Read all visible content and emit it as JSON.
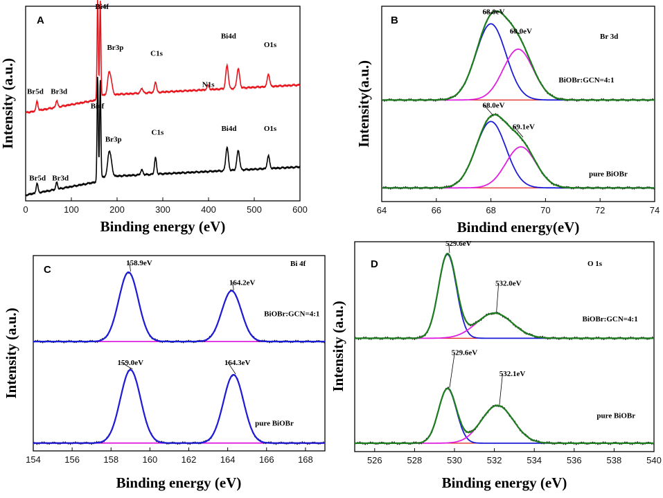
{
  "chart_data": [
    {
      "panel": "A",
      "type": "line",
      "xlabel": "Binding energy (eV)",
      "ylabel": "Intensity (a.u.)",
      "xlim": [
        0,
        600
      ],
      "ylim": [
        0,
        1
      ],
      "xticks": [
        "0",
        "100",
        "200",
        "300",
        "400",
        "500",
        "600"
      ],
      "series": [
        {
          "name": "BiOBr:GCN=4:1",
          "color": "#e8141c",
          "baseline": 0.5,
          "slope": 0.00027,
          "drop": 0.19,
          "dropAt": 158,
          "peaks": [
            [
              25,
              0.05,
              2
            ],
            [
              68,
              0.035,
              2
            ],
            [
              157.5,
              0.52,
              1.3
            ],
            [
              163.2,
              0.49,
              1.3
            ],
            [
              182,
              0.1,
              3
            ],
            [
              187,
              0.06,
              3
            ],
            [
              254,
              0.025,
              2.5
            ],
            [
              284,
              0.055,
              2.2
            ],
            [
              399,
              0.022,
              2.5
            ],
            [
              440.5,
              0.12,
              2.8
            ],
            [
              465,
              0.1,
              3
            ],
            [
              531,
              0.065,
              2.6
            ]
          ]
        },
        {
          "name": "pure BiOBr",
          "color": "#000000",
          "baseline": 0.08,
          "slope": 0.00026,
          "drop": 0.2,
          "dropAt": 158,
          "peaks": [
            [
              25,
              0.05,
              2
            ],
            [
              68,
              0.035,
              2
            ],
            [
              157.5,
              0.54,
              1.3
            ],
            [
              163.2,
              0.5,
              1.3
            ],
            [
              182,
              0.11,
              3
            ],
            [
              187,
              0.065,
              3
            ],
            [
              254,
              0.025,
              2.5
            ],
            [
              284,
              0.085,
              2.2
            ],
            [
              440.5,
              0.12,
              2.8
            ],
            [
              465,
              0.1,
              3
            ],
            [
              531,
              0.065,
              2.6
            ]
          ]
        }
      ],
      "annotations": [
        {
          "text": "Bi4f",
          "x": 152,
          "y": 0.985
        },
        {
          "text": "Br3p",
          "x": 178,
          "y": 0.775
        },
        {
          "text": "C1s",
          "x": 273,
          "y": 0.745
        },
        {
          "text": "N1s",
          "x": 386,
          "y": 0.585
        },
        {
          "text": "Bi4d",
          "x": 427,
          "y": 0.835
        },
        {
          "text": "O1s",
          "x": 521,
          "y": 0.79
        },
        {
          "text": "Br5d",
          "x": 3,
          "y": 0.55
        },
        {
          "text": "Br3d",
          "x": 55,
          "y": 0.55
        },
        {
          "text": "Bi4f",
          "x": 142,
          "y": 0.475
        },
        {
          "text": "Br3p",
          "x": 174,
          "y": 0.305
        },
        {
          "text": "C1s",
          "x": 275,
          "y": 0.34
        },
        {
          "text": "Bi4d",
          "x": 428,
          "y": 0.36
        },
        {
          "text": "O1s",
          "x": 521,
          "y": 0.36
        },
        {
          "text": "Br5d",
          "x": 8,
          "y": 0.105
        },
        {
          "text": "Br3d",
          "x": 58,
          "y": 0.105
        }
      ]
    },
    {
      "panel": "B",
      "type": "line",
      "xlabel": "Bindind energy(eV)",
      "ylabel": "Intensity(a.u.)",
      "xlim": [
        64,
        74
      ],
      "ylim": [
        0,
        1
      ],
      "xticks": [
        "64",
        "66",
        "68",
        "70",
        "72",
        "74"
      ],
      "groups": [
        {
          "sample": "BiOBr:GCN=4:1",
          "base": 0.52,
          "components": [
            {
              "name": "fit 68.0 eV",
              "center": 68.0,
              "amp": 0.39,
              "sigma": 0.55,
              "color": "#1c1cd8"
            },
            {
              "name": "fit 69.0 eV",
              "center": 69.0,
              "amp": 0.26,
              "sigma": 0.55,
              "color": "#e020e0"
            }
          ],
          "labels": [
            {
              "text": "68.0eV",
              "x": 68.1,
              "y": 0.96
            },
            {
              "text": "69.0eV",
              "x": 69.1,
              "y": 0.86
            },
            {
              "text": "BiOBr:GCN=4:1",
              "x": 71.5,
              "y": 0.61
            }
          ]
        },
        {
          "sample": "pure BiOBr",
          "base": 0.07,
          "components": [
            {
              "name": "fit 68.0 eV",
              "center": 68.0,
              "amp": 0.34,
              "sigma": 0.55,
              "color": "#1c1cd8"
            },
            {
              "name": "fit 69.1 eV",
              "center": 69.1,
              "amp": 0.21,
              "sigma": 0.55,
              "color": "#e020e0"
            }
          ],
          "labels": [
            {
              "text": "68.0eV",
              "x": 68.1,
              "y": 0.48
            },
            {
              "text": "69.1eV",
              "x": 69.2,
              "y": 0.37
            },
            {
              "text": "pure BiOBr",
              "x": 72.3,
              "y": 0.13
            }
          ]
        }
      ],
      "title": "Br 3d",
      "envelope_color": "#1e7d1e"
    },
    {
      "panel": "C",
      "type": "line",
      "xlabel": "Binding energy (eV)",
      "ylabel": "Intensity (a.u.)",
      "xlim": [
        154,
        169
      ],
      "ylim": [
        0,
        1
      ],
      "xticks": [
        "154",
        "156",
        "158",
        "160",
        "162",
        "164",
        "166",
        "168"
      ],
      "groups": [
        {
          "sample": "BiOBr:GCN=4:1",
          "base": 0.56,
          "components": [
            {
              "name": "fit 158.9 eV",
              "center": 158.9,
              "amp": 0.355,
              "sigma": 0.5,
              "color": "#e020e0"
            },
            {
              "name": "fit 164.2 eV",
              "center": 164.2,
              "amp": 0.26,
              "sigma": 0.5,
              "color": "#e020e0"
            }
          ],
          "labels": [
            {
              "text": "158.9eV",
              "x": 159.45,
              "y": 0.95
            },
            {
              "text": "164.2eV",
              "x": 164.75,
              "y": 0.85
            },
            {
              "text": "BiOBr:GCN=4:1",
              "x": 167.3,
              "y": 0.69
            }
          ]
        },
        {
          "sample": "pure BiOBr",
          "base": 0.04,
          "components": [
            {
              "name": "fit 159.0 eV",
              "center": 159.0,
              "amp": 0.375,
              "sigma": 0.52,
              "color": "#e020e0"
            },
            {
              "name": "fit 164.3 eV",
              "center": 164.3,
              "amp": 0.35,
              "sigma": 0.52,
              "color": "#e020e0"
            }
          ],
          "labels": [
            {
              "text": "159.0eV",
              "x": 159.0,
              "y": 0.44
            },
            {
              "text": "164.3eV",
              "x": 164.5,
              "y": 0.44
            },
            {
              "text": "pure BiOBr",
              "x": 166.4,
              "y": 0.13
            }
          ]
        }
      ],
      "title": "Bi 4f",
      "envelope_color": "#1c1cd8"
    },
    {
      "panel": "D",
      "type": "line",
      "xlabel": "Binding energy (eV)",
      "ylabel": "Intensity (a.u.)",
      "xlim": [
        525,
        540
      ],
      "ylim": [
        0,
        1
      ],
      "xticks": [
        "526",
        "528",
        "530",
        "532",
        "534",
        "536",
        "538",
        "540"
      ],
      "groups": [
        {
          "sample": "BiOBr:GCN=4:1",
          "base": 0.54,
          "components": [
            {
              "name": "fit 529.6 eV",
              "center": 529.65,
              "amp": 0.4,
              "sigma": 0.45,
              "color": "#1c1cd8"
            },
            {
              "name": "fit 532.0 eV",
              "center": 532.0,
              "amp": 0.12,
              "sigma": 0.9,
              "color": "#e020e0"
            }
          ],
          "labels": [
            {
              "text": "529.6eV",
              "x": 530.2,
              "y": 0.98
            },
            {
              "text": "532.0eV",
              "x": 532.7,
              "y": 0.79
            },
            {
              "text": "BiOBr:GCN=4:1",
              "x": 537.8,
              "y": 0.62
            }
          ]
        },
        {
          "sample": "pure BiOBr",
          "base": 0.04,
          "components": [
            {
              "name": "fit 529.6 eV",
              "center": 529.65,
              "amp": 0.26,
              "sigma": 0.45,
              "color": "#1c1cd8"
            },
            {
              "name": "fit 532.1 eV",
              "center": 532.15,
              "amp": 0.18,
              "sigma": 0.8,
              "color": "#e020e0"
            }
          ],
          "labels": [
            {
              "text": "529.6eV",
              "x": 530.5,
              "y": 0.46
            },
            {
              "text": "532.1eV",
              "x": 532.9,
              "y": 0.36
            },
            {
              "text": "pure BiOBr",
              "x": 538.1,
              "y": 0.16
            }
          ]
        }
      ],
      "title": "O 1s",
      "envelope_color": "#1e7d1e"
    }
  ]
}
